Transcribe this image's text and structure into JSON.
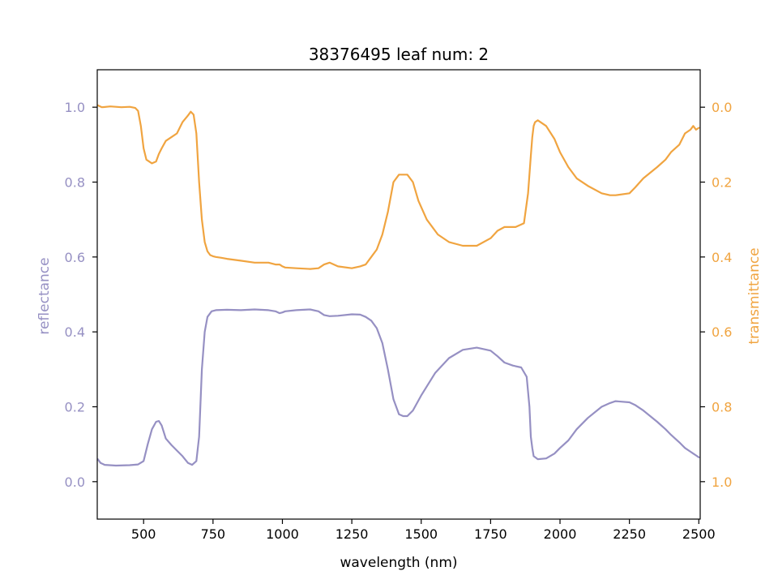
{
  "chart_data": {
    "type": "line",
    "title": "38376495 leaf num: 2",
    "xlabel": "wavelength (nm)",
    "xlim": [
      333,
      2505
    ],
    "x_ticks": [
      500,
      750,
      1000,
      1250,
      1500,
      1750,
      2000,
      2250,
      2500
    ],
    "x_tick_labels": [
      "500",
      "750",
      "1000",
      "1250",
      "1500",
      "1750",
      "2000",
      "2250",
      "2500"
    ],
    "left_axis": {
      "label": "reflectance",
      "color": "#9690c3",
      "ylim": [
        -0.1,
        1.1
      ],
      "ticks": [
        0.0,
        0.2,
        0.4,
        0.6,
        0.8,
        1.0
      ],
      "tick_labels": [
        "0.0",
        "0.2",
        "0.4",
        "0.6",
        "0.8",
        "1.0"
      ]
    },
    "right_axis": {
      "label": "transmittance",
      "color": "#f0a440",
      "inverted": true,
      "ylim": [
        1.1,
        -0.1
      ],
      "ticks": [
        0.0,
        0.2,
        0.4,
        0.6,
        0.8,
        1.0
      ],
      "tick_labels": [
        "0.0",
        "0.2",
        "0.4",
        "0.6",
        "0.8",
        "1.0"
      ]
    },
    "grid": false,
    "series": [
      {
        "axis": "left",
        "color": "#9690c3",
        "x": [
          335,
          345,
          360,
          400,
          450,
          480,
          500,
          515,
          530,
          545,
          555,
          565,
          580,
          600,
          620,
          640,
          660,
          675,
          690,
          700,
          710,
          720,
          730,
          745,
          760,
          800,
          850,
          900,
          950,
          975,
          990,
          1000,
          1010,
          1050,
          1100,
          1130,
          1150,
          1170,
          1200,
          1250,
          1280,
          1300,
          1320,
          1340,
          1360,
          1380,
          1400,
          1420,
          1435,
          1450,
          1470,
          1500,
          1550,
          1600,
          1650,
          1700,
          1750,
          1775,
          1800,
          1830,
          1860,
          1880,
          1890,
          1895,
          1900,
          1905,
          1920,
          1950,
          1980,
          2000,
          2030,
          2060,
          2100,
          2150,
          2180,
          2200,
          2250,
          2270,
          2300,
          2350,
          2380,
          2400,
          2430,
          2450,
          2470,
          2480,
          2490,
          2500
        ],
        "y": [
          0.06,
          0.05,
          0.045,
          0.043,
          0.044,
          0.046,
          0.055,
          0.1,
          0.14,
          0.16,
          0.162,
          0.15,
          0.115,
          0.098,
          0.083,
          0.068,
          0.05,
          0.045,
          0.055,
          0.12,
          0.3,
          0.4,
          0.44,
          0.455,
          0.458,
          0.459,
          0.458,
          0.46,
          0.458,
          0.455,
          0.45,
          0.452,
          0.455,
          0.458,
          0.46,
          0.455,
          0.445,
          0.442,
          0.443,
          0.447,
          0.446,
          0.44,
          0.43,
          0.41,
          0.37,
          0.3,
          0.22,
          0.18,
          0.175,
          0.175,
          0.19,
          0.23,
          0.29,
          0.33,
          0.352,
          0.358,
          0.35,
          0.335,
          0.318,
          0.31,
          0.305,
          0.28,
          0.2,
          0.12,
          0.09,
          0.068,
          0.06,
          0.062,
          0.075,
          0.09,
          0.11,
          0.14,
          0.17,
          0.2,
          0.21,
          0.215,
          0.212,
          0.205,
          0.19,
          0.16,
          0.14,
          0.125,
          0.105,
          0.09,
          0.08,
          0.075,
          0.07,
          0.065
        ]
      },
      {
        "axis": "right",
        "color": "#f0a440",
        "x": [
          335,
          350,
          380,
          420,
          450,
          470,
          480,
          490,
          500,
          510,
          530,
          545,
          555,
          565,
          580,
          600,
          620,
          640,
          660,
          670,
          680,
          690,
          700,
          710,
          720,
          730,
          740,
          750,
          760,
          780,
          800,
          850,
          900,
          950,
          975,
          990,
          1000,
          1010,
          1050,
          1100,
          1130,
          1150,
          1170,
          1200,
          1250,
          1280,
          1300,
          1320,
          1340,
          1360,
          1380,
          1400,
          1420,
          1435,
          1450,
          1470,
          1490,
          1520,
          1560,
          1600,
          1650,
          1700,
          1750,
          1775,
          1800,
          1840,
          1870,
          1885,
          1895,
          1900,
          1905,
          1910,
          1920,
          1950,
          1980,
          2000,
          2030,
          2060,
          2100,
          2150,
          2180,
          2200,
          2250,
          2270,
          2300,
          2350,
          2380,
          2400,
          2430,
          2450,
          2470,
          2480,
          2490,
          2500
        ],
        "y": [
          -0.005,
          0.0,
          -0.002,
          0.0,
          -0.001,
          0.002,
          0.01,
          0.05,
          0.11,
          0.14,
          0.15,
          0.145,
          0.125,
          0.11,
          0.09,
          0.08,
          0.07,
          0.04,
          0.022,
          0.012,
          0.02,
          0.07,
          0.2,
          0.3,
          0.36,
          0.385,
          0.395,
          0.398,
          0.4,
          0.402,
          0.405,
          0.41,
          0.415,
          0.415,
          0.42,
          0.42,
          0.425,
          0.428,
          0.43,
          0.432,
          0.43,
          0.42,
          0.415,
          0.425,
          0.43,
          0.425,
          0.42,
          0.4,
          0.38,
          0.34,
          0.28,
          0.2,
          0.18,
          0.18,
          0.18,
          0.2,
          0.25,
          0.3,
          0.34,
          0.36,
          0.37,
          0.37,
          0.35,
          0.33,
          0.32,
          0.32,
          0.31,
          0.23,
          0.13,
          0.08,
          0.05,
          0.04,
          0.035,
          0.05,
          0.085,
          0.12,
          0.16,
          0.19,
          0.21,
          0.23,
          0.235,
          0.235,
          0.23,
          0.215,
          0.19,
          0.16,
          0.14,
          0.12,
          0.1,
          0.07,
          0.06,
          0.05,
          0.06,
          0.055
        ]
      }
    ]
  }
}
